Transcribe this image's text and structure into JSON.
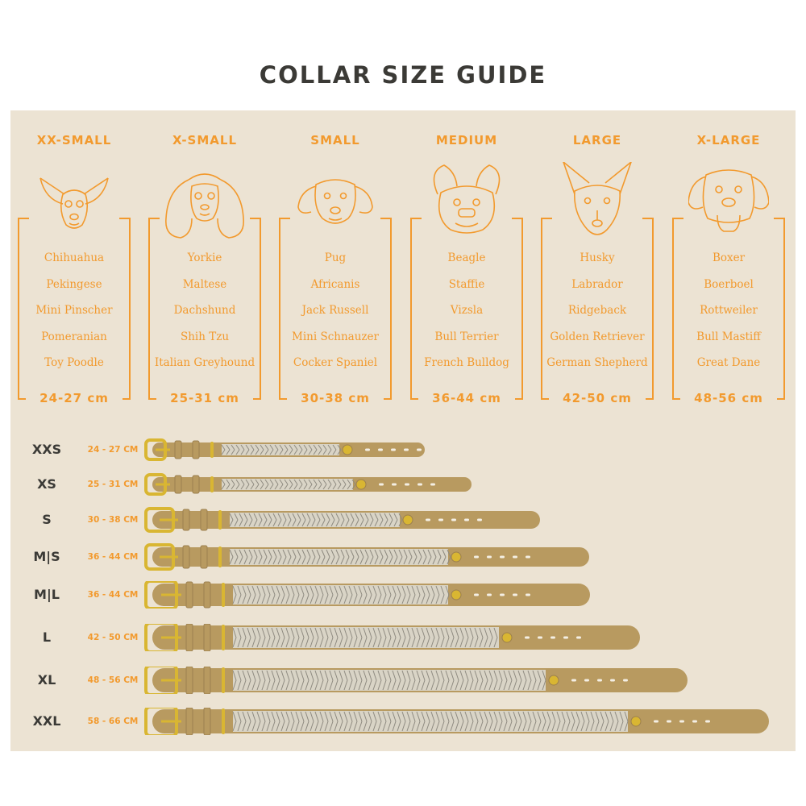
{
  "title": "COLLAR SIZE GUIDE",
  "colors": {
    "accent": "#f29a2e",
    "background": "#ece3d3",
    "leather": "#b89a60",
    "buckle": "#d9b632",
    "text": "#3b3a36"
  },
  "categories": [
    {
      "label": "XX-SMALL",
      "icon": "chihuahua-icon",
      "breeds": [
        "Chihuahua",
        "Pekingese",
        "Mini Pinscher",
        "Pomeranian",
        "Toy Poodle"
      ],
      "range": "24-27 cm"
    },
    {
      "label": "X-SMALL",
      "icon": "spaniel-icon",
      "breeds": [
        "Yorkie",
        "Maltese",
        "Dachshund",
        "Shih Tzu",
        "Italian Greyhound"
      ],
      "range": "25-31 cm"
    },
    {
      "label": "SMALL",
      "icon": "beagle-icon",
      "breeds": [
        "Pug",
        "Africanis",
        "Jack Russell",
        "Mini Schnauzer",
        "Cocker Spaniel"
      ],
      "range": "30-38 cm"
    },
    {
      "label": "MEDIUM",
      "icon": "bulldog-icon",
      "breeds": [
        "Beagle",
        "Staffie",
        "Vizsla",
        "Bull Terrier",
        "French Bulldog"
      ],
      "range": "36-44 cm"
    },
    {
      "label": "LARGE",
      "icon": "shepherd-icon",
      "breeds": [
        "Husky",
        "Labrador",
        "Ridgeback",
        "Golden Retriever",
        "German Shepherd"
      ],
      "range": "42-50 cm"
    },
    {
      "label": "X-LARGE",
      "icon": "mastiff-icon",
      "breeds": [
        "Boxer",
        "Boerboel",
        "Rottweiler",
        "Bull Mastiff",
        "Great Dane"
      ],
      "range": "48-56 cm"
    }
  ],
  "collars": [
    {
      "size": "XXS",
      "range": "24 - 27 CM"
    },
    {
      "size": "XS",
      "range": "25 - 31 CM"
    },
    {
      "size": "S",
      "range": "30 - 38 CM"
    },
    {
      "size": "M|S",
      "range": "36 - 44 CM"
    },
    {
      "size": "M|L",
      "range": "36 - 44 CM"
    },
    {
      "size": "L",
      "range": "42 - 50 CM"
    },
    {
      "size": "XL",
      "range": "48 - 56 CM"
    },
    {
      "size": "XXL",
      "range": "58 - 66 CM"
    }
  ]
}
